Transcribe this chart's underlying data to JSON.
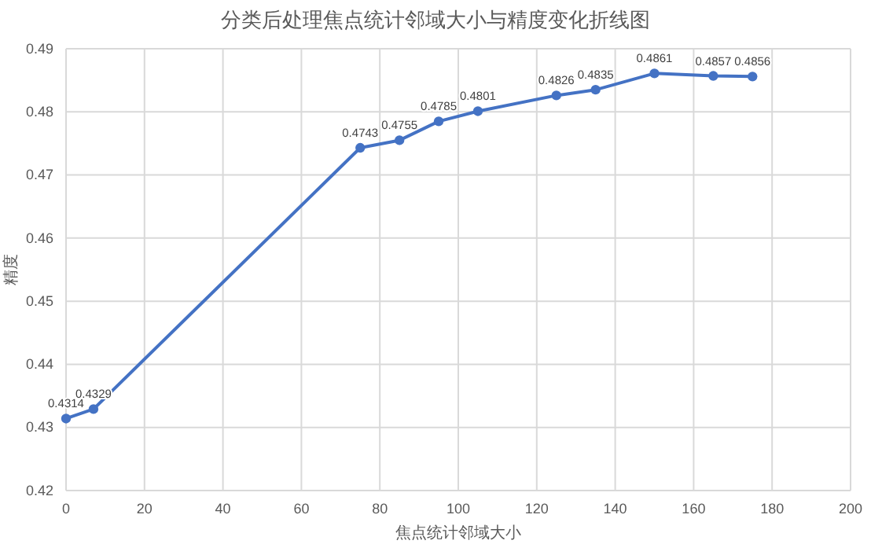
{
  "chart_data": {
    "type": "line",
    "title": "分类后处理焦点统计邻域大小与精度变化折线图",
    "xlabel": "焦点统计邻域大小",
    "ylabel": "精度",
    "x": [
      0,
      7,
      75,
      85,
      95,
      105,
      125,
      135,
      150,
      165,
      175
    ],
    "series": [
      {
        "color": "#4472c4",
        "values": [
          0.4314,
          0.4329,
          0.4743,
          0.4755,
          0.4785,
          0.4801,
          0.4826,
          0.4835,
          0.4861,
          0.4857,
          0.4856
        ]
      }
    ],
    "xlim": [
      0,
      200
    ],
    "xticks": [
      0,
      20,
      40,
      60,
      80,
      100,
      120,
      140,
      160,
      180,
      200
    ],
    "ylim": [
      0.42,
      0.49
    ],
    "yticks": [
      0.42,
      0.43,
      0.44,
      0.45,
      0.46,
      0.47,
      0.48,
      0.49
    ],
    "grid": true,
    "marker": "circle",
    "line_style": "solid",
    "data_labels": true
  }
}
